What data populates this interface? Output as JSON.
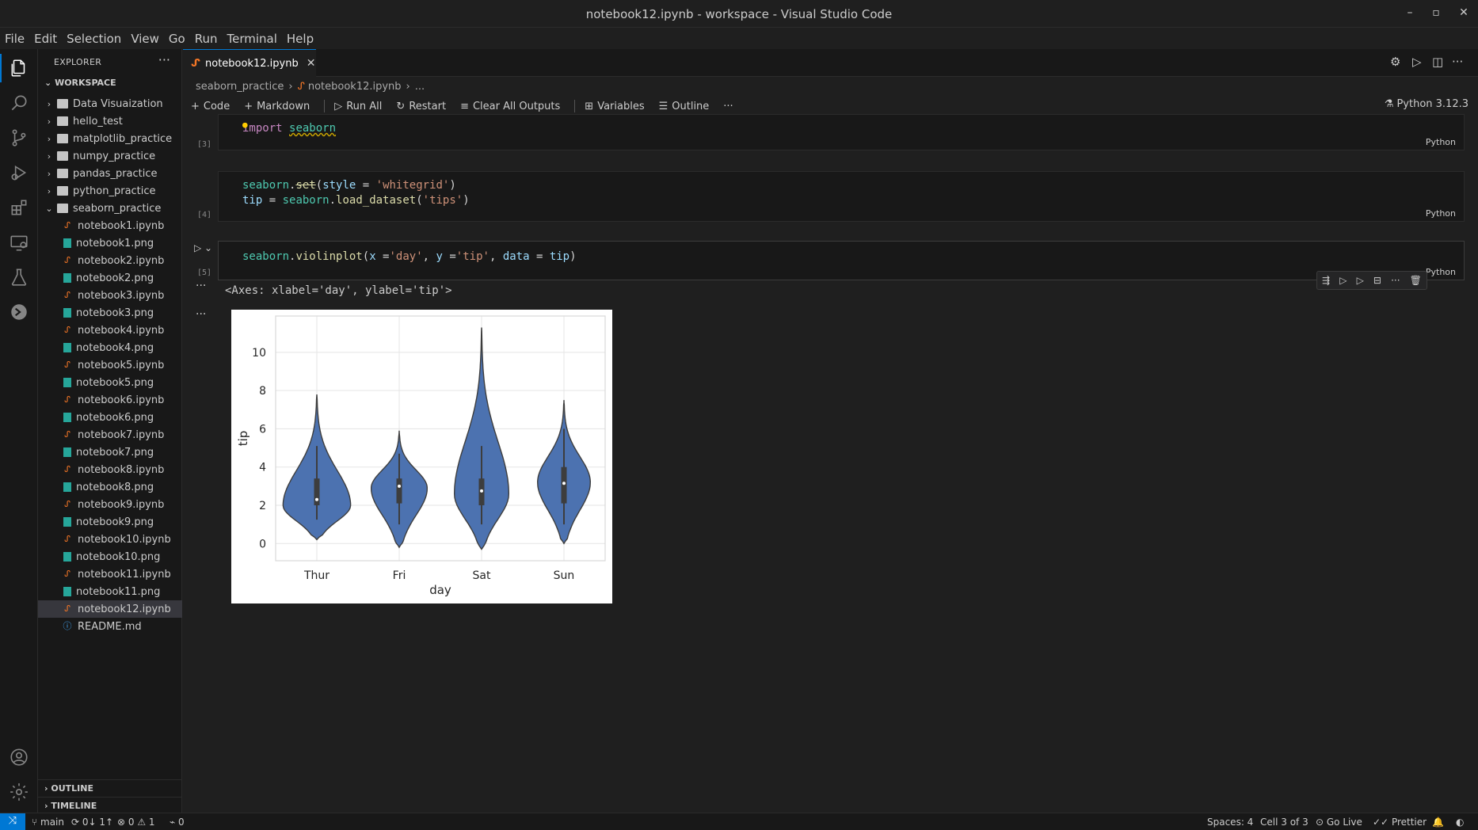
{
  "window": {
    "title": "notebook12.ipynb - workspace - Visual Studio Code"
  },
  "menu": [
    "File",
    "Edit",
    "Selection",
    "View",
    "Go",
    "Run",
    "Terminal",
    "Help"
  ],
  "explorer": {
    "title": "EXPLORER",
    "workspace": "WORKSPACE",
    "folders": [
      "Data Visuaization",
      "hello_test",
      "matplotlib_practice",
      "numpy_practice",
      "pandas_practice",
      "python_practice"
    ],
    "open_folder": "seaborn_practice",
    "files": [
      {
        "name": "notebook1.ipynb",
        "type": "ipynb"
      },
      {
        "name": "notebook1.png",
        "type": "png"
      },
      {
        "name": "notebook2.ipynb",
        "type": "ipynb"
      },
      {
        "name": "notebook2.png",
        "type": "png"
      },
      {
        "name": "notebook3.ipynb",
        "type": "ipynb"
      },
      {
        "name": "notebook3.png",
        "type": "png"
      },
      {
        "name": "notebook4.ipynb",
        "type": "ipynb"
      },
      {
        "name": "notebook4.png",
        "type": "png"
      },
      {
        "name": "notebook5.ipynb",
        "type": "ipynb"
      },
      {
        "name": "notebook5.png",
        "type": "png"
      },
      {
        "name": "notebook6.ipynb",
        "type": "ipynb"
      },
      {
        "name": "notebook6.png",
        "type": "png"
      },
      {
        "name": "notebook7.ipynb",
        "type": "ipynb"
      },
      {
        "name": "notebook7.png",
        "type": "png"
      },
      {
        "name": "notebook8.ipynb",
        "type": "ipynb"
      },
      {
        "name": "notebook8.png",
        "type": "png"
      },
      {
        "name": "notebook9.ipynb",
        "type": "ipynb"
      },
      {
        "name": "notebook9.png",
        "type": "png"
      },
      {
        "name": "notebook10.ipynb",
        "type": "ipynb"
      },
      {
        "name": "notebook10.png",
        "type": "png"
      },
      {
        "name": "notebook11.ipynb",
        "type": "ipynb"
      },
      {
        "name": "notebook11.png",
        "type": "png"
      },
      {
        "name": "notebook12.ipynb",
        "type": "ipynb",
        "selected": true
      },
      {
        "name": "README.md",
        "type": "md"
      }
    ],
    "outline": "OUTLINE",
    "timeline": "TIMELINE"
  },
  "editor": {
    "tab": "notebook12.ipynb",
    "breadcrumb": [
      "seaborn_practice",
      "notebook12.ipynb",
      "..."
    ],
    "toolbar": {
      "code": "Code",
      "markdown": "Markdown",
      "run_all": "Run All",
      "restart": "Restart",
      "clear": "Clear All Outputs",
      "variables": "Variables",
      "outline": "Outline",
      "more": "···"
    },
    "kernel": "Python 3.12.3",
    "cells": [
      {
        "exec": "[3]",
        "lang": "Python"
      },
      {
        "exec": "[4]",
        "lang": "Python"
      },
      {
        "exec": "[5]",
        "lang": "Python"
      }
    ],
    "code_tokens": {
      "c1_import": "import",
      "c1_mod": "seaborn",
      "c2_l1_mod": "seaborn",
      "c2_l1_fn": "set",
      "c2_l1_arg": "style",
      "c2_l1_str": "'whitegrid'",
      "c2_l2_var": "tip",
      "c2_l2_mod": "seaborn",
      "c2_l2_fn": "load_dataset",
      "c2_l2_str": "'tips'",
      "c3_mod": "seaborn",
      "c3_fn": "violinplot",
      "c3_x": "x",
      "c3_xs": "'day'",
      "c3_y": "y",
      "c3_ys": "'tip'",
      "c3_data": "data",
      "c3_tip": "tip"
    },
    "output_text": "<Axes: xlabel='day', ylabel='tip'>"
  },
  "chart_data": {
    "type": "violin",
    "categories": [
      "Thur",
      "Fri",
      "Sat",
      "Sun"
    ],
    "xlabel": "day",
    "ylabel": "tip",
    "ylim": [
      -0.9,
      11.9
    ],
    "yticks": [
      0,
      2,
      4,
      6,
      8,
      10
    ],
    "grid": true,
    "color": "#4c72b0",
    "violins": [
      {
        "min": 0.2,
        "max": 7.8,
        "q1": 2.0,
        "median": 2.3,
        "q3": 3.4,
        "whisker_low": 1.25,
        "whisker_high": 5.1,
        "mode": 2.0,
        "width": 0.82
      },
      {
        "min": -0.2,
        "max": 5.9,
        "q1": 2.1,
        "median": 3.0,
        "q3": 3.4,
        "whisker_low": 1.0,
        "whisker_high": 4.7,
        "mode": 2.9,
        "width": 0.68
      },
      {
        "min": -0.3,
        "max": 11.3,
        "q1": 2.0,
        "median": 2.75,
        "q3": 3.4,
        "whisker_low": 1.0,
        "whisker_high": 5.1,
        "mode": 2.6,
        "width": 0.66
      },
      {
        "min": 0.0,
        "max": 7.5,
        "q1": 2.1,
        "median": 3.15,
        "q3": 4.0,
        "whisker_low": 1.0,
        "whisker_high": 6.0,
        "mode": 3.2,
        "width": 0.64
      }
    ]
  },
  "status": {
    "branch": "main",
    "sync": "0↓ 1↑",
    "errors": "0",
    "warnings": "1",
    "ports": "0",
    "spaces": "Spaces: 4",
    "cell": "Cell 3 of 3",
    "golive": "Go Live",
    "prettier": "Prettier"
  }
}
